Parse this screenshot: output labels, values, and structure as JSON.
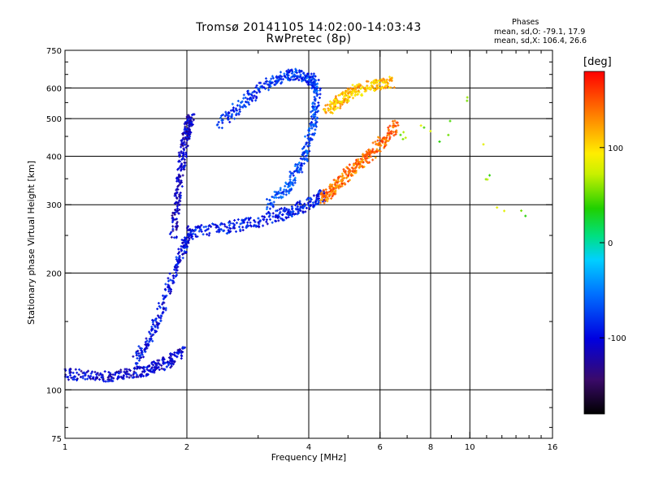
{
  "chart_data": {
    "type": "scatter",
    "title": "Tromsø 20141105 14:02:00-14:03:43",
    "subtitle": "RwPretec (8p)",
    "xlabel": "Frequency [MHz]",
    "ylabel": "Stationary phase Virtual Height [km]",
    "x_scale": "log2",
    "y_scale": "log",
    "xlim": [
      1,
      16
    ],
    "ylim": [
      75,
      750
    ],
    "x_ticks": [
      1,
      2,
      4,
      6,
      8,
      10,
      16
    ],
    "x_tick_labels": [
      "1",
      "2",
      "4",
      "6",
      "8",
      "10",
      "16"
    ],
    "y_ticks": [
      75,
      100,
      200,
      300,
      400,
      500,
      600,
      750
    ],
    "y_tick_labels": [
      "75",
      "100",
      "200",
      "300",
      "400",
      "500",
      "600",
      "750"
    ],
    "grid": true,
    "stats": {
      "header": "Phases",
      "o_line": "mean, sd,O: -79.1, 17.9",
      "x_line": "mean, sd,X: 106.4, 26.6"
    },
    "colorbar": {
      "label": "[deg]",
      "range": [
        -180,
        180
      ],
      "ticks": [
        -100,
        0,
        100
      ],
      "tick_labels": [
        "-100",
        "0",
        "100"
      ]
    },
    "trace_segments": [
      {
        "name": "low-E trace",
        "freq": [
          1.0,
          1.2,
          1.4,
          1.6,
          1.8,
          1.95
        ],
        "height": [
          110,
          108,
          109,
          112,
          118,
          125
        ],
        "phase": -105
      },
      {
        "name": "F1 lower branch",
        "freq": [
          1.5,
          1.65,
          1.8,
          1.95,
          2.05
        ],
        "height": [
          118,
          140,
          180,
          230,
          255
        ],
        "phase": -95
      },
      {
        "name": "F spread column near 2 MHz",
        "freq": [
          1.85,
          1.9,
          1.95,
          2.0,
          2.05
        ],
        "height": [
          250,
          320,
          400,
          470,
          500
        ],
        "phase": -110
      },
      {
        "name": "F2 O-mode base",
        "freq": [
          2.0,
          2.5,
          3.0,
          3.5,
          4.0,
          4.4
        ],
        "height": [
          253,
          262,
          272,
          285,
          300,
          320
        ],
        "phase": -90
      },
      {
        "name": "O-mode upper arc",
        "freq": [
          2.4,
          2.8,
          3.2,
          3.6,
          4.0,
          4.2
        ],
        "height": [
          480,
          560,
          620,
          650,
          640,
          600
        ],
        "phase": -80
      },
      {
        "name": "O-mode cusp",
        "freq": [
          3.2,
          3.6,
          3.9,
          4.1,
          4.2
        ],
        "height": [
          300,
          340,
          400,
          480,
          600
        ],
        "phase": -70
      },
      {
        "name": "X-mode trace",
        "freq": [
          4.3,
          4.6,
          5.0,
          5.5,
          6.0,
          6.6
        ],
        "height": [
          310,
          330,
          360,
          390,
          430,
          480
        ],
        "phase": 140
      },
      {
        "name": "X-mode upper",
        "freq": [
          4.4,
          4.8,
          5.2,
          5.8,
          6.4
        ],
        "height": [
          520,
          560,
          590,
          610,
          620
        ],
        "phase": 110
      },
      {
        "name": "sparse high-frequency echoes",
        "freq": [
          6.5,
          7.5,
          8.5,
          10.0,
          11.5,
          14.0
        ],
        "height": [
          430,
          470,
          440,
          600,
          300,
          280
        ],
        "phase": 60
      }
    ]
  }
}
